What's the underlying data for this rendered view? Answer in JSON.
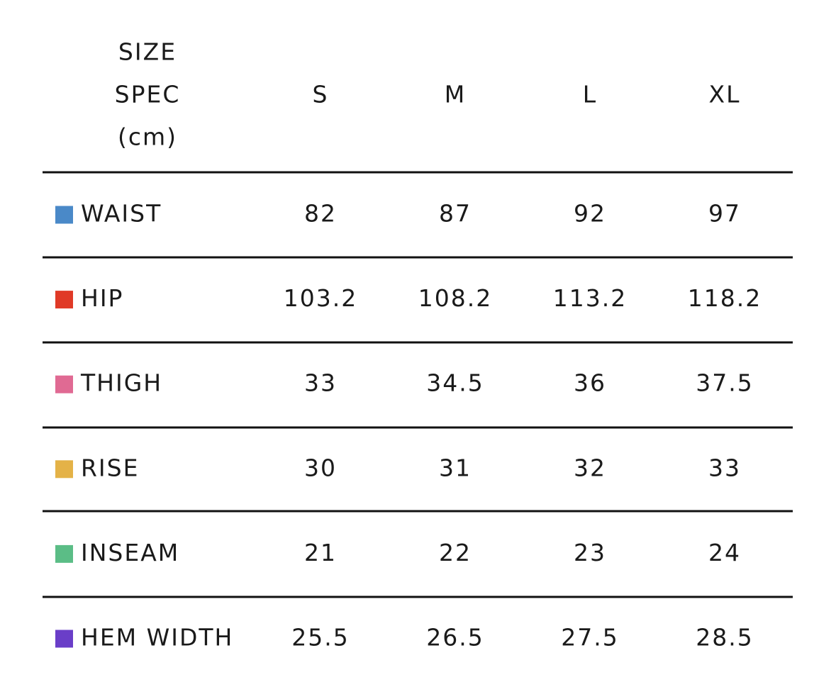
{
  "header": {
    "title_lines": [
      "SIZE",
      "SPEC",
      "(cm)"
    ],
    "sizes": [
      "S",
      "M",
      "L",
      "XL"
    ]
  },
  "table": {
    "rows": [
      {
        "label": "WAIST",
        "color": "#4a89c8",
        "values": [
          82,
          87,
          92,
          97
        ]
      },
      {
        "label": "HIP",
        "color": "#e03a27",
        "values": [
          103.2,
          108.2,
          113.2,
          118.2
        ]
      },
      {
        "label": "THIGH",
        "color": "#e06a93",
        "values": [
          33,
          34.5,
          36,
          37.5
        ]
      },
      {
        "label": "RISE",
        "color": "#e4b247",
        "values": [
          30,
          31,
          32,
          33
        ]
      },
      {
        "label": "INSEAM",
        "color": "#5bbd86",
        "values": [
          21,
          22,
          23,
          24
        ]
      },
      {
        "label": "HEM WIDTH",
        "color": "#6a3ec8",
        "values": [
          25.5,
          26.5,
          27.5,
          28.5
        ]
      }
    ]
  }
}
